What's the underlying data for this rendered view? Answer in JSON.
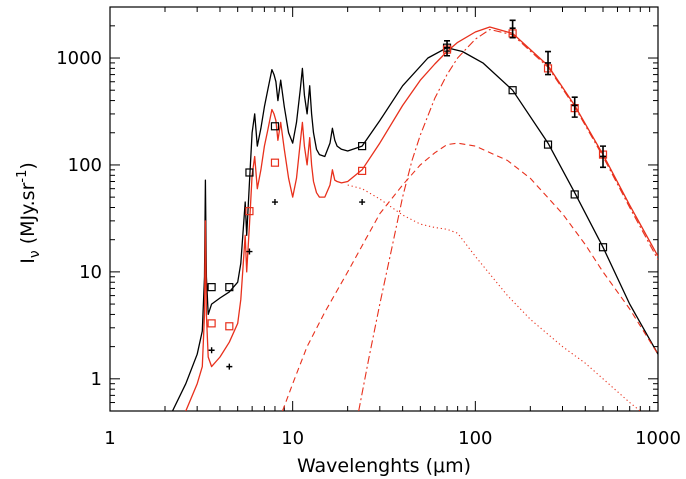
{
  "chart_data": {
    "type": "line",
    "xlabel": "Wavelenghts (μm)",
    "ylabel": "Iν (MJy.sr⁻¹)",
    "ylabel_parts": {
      "main": "I",
      "sub": "ν",
      "units": " (MJy.sr",
      "sup": "-1",
      "close": ")"
    },
    "xscale": "log",
    "yscale": "log",
    "xlim": [
      1,
      1000
    ],
    "ylim": [
      0.5,
      3000
    ],
    "x_ticks": [
      1,
      10,
      100,
      1000
    ],
    "x_tick_labels": [
      "1",
      "10",
      "100",
      "1000"
    ],
    "y_ticks": [
      1,
      10,
      100,
      1000
    ],
    "y_tick_labels": [
      "1",
      "10",
      "100",
      "1000"
    ],
    "grid": false,
    "legend": "none",
    "colors": {
      "black": "#000000",
      "red": "#e8301c"
    },
    "series": [
      {
        "color": "black",
        "style": "solid",
        "x": [
          2.2,
          2.6,
          3.0,
          3.2,
          3.29,
          3.33,
          3.37,
          3.45,
          3.6,
          4.0,
          4.5,
          5.0,
          5.2,
          5.5,
          5.6,
          5.8,
          6.0,
          6.2,
          6.4,
          6.7,
          7.0,
          7.3,
          7.7,
          7.9,
          8.1,
          8.3,
          8.6,
          9.0,
          9.5,
          10.0,
          10.5,
          11.0,
          11.3,
          11.6,
          12.0,
          12.4,
          12.7,
          13.0,
          13.5,
          14.0,
          15.0,
          16.0,
          16.5,
          17.0,
          17.5,
          18.5,
          20.0,
          24.0,
          30.0,
          40.0,
          55.0,
          70.0,
          85.0,
          110.0,
          160.0,
          250.0,
          350.0,
          500.0,
          700.0,
          1000.0
        ],
        "y": [
          0.5,
          0.9,
          1.7,
          2.8,
          9.0,
          72.0,
          9.0,
          4.0,
          5.0,
          5.7,
          6.5,
          8.0,
          12.0,
          45.0,
          22.0,
          70.0,
          200.0,
          300.0,
          150.0,
          220.0,
          350.0,
          500.0,
          780.0,
          700.0,
          600.0,
          400.0,
          620.0,
          350.0,
          200.0,
          160.0,
          250.0,
          500.0,
          800.0,
          450.0,
          300.0,
          550.0,
          300.0,
          200.0,
          140.0,
          125.0,
          120.0,
          160.0,
          220.0,
          170.0,
          150.0,
          140.0,
          135.0,
          150.0,
          260.0,
          550.0,
          1000.0,
          1250.0,
          1150.0,
          900.0,
          500.0,
          160.0,
          55.0,
          17.0,
          5.0,
          1.7
        ]
      },
      {
        "color": "red",
        "style": "solid",
        "x": [
          2.6,
          3.0,
          3.2,
          3.29,
          3.33,
          3.37,
          3.45,
          3.6,
          4.0,
          4.5,
          5.0,
          5.2,
          5.5,
          5.6,
          5.8,
          6.0,
          6.2,
          6.4,
          6.7,
          7.0,
          7.3,
          7.7,
          7.9,
          8.1,
          8.3,
          8.6,
          9.0,
          9.5,
          10.0,
          10.5,
          11.0,
          11.3,
          11.6,
          12.0,
          12.4,
          12.7,
          13.0,
          13.5,
          14.0,
          15.0,
          16.0,
          16.5,
          17.0,
          17.5,
          18.5,
          20.0,
          24.0,
          30.0,
          40.0,
          50.0,
          60.0,
          70.0,
          80.0,
          100.0,
          120.0,
          160.0,
          250.0,
          350.0,
          500.0,
          700.0,
          1000.0
        ],
        "y": [
          0.5,
          0.9,
          1.3,
          4.0,
          30.0,
          4.0,
          1.6,
          1.3,
          1.6,
          2.2,
          3.3,
          5.5,
          22.0,
          10.0,
          28.0,
          80.0,
          120.0,
          60.0,
          90.0,
          150.0,
          210.0,
          330.0,
          300.0,
          260.0,
          170.0,
          250.0,
          140.0,
          75.0,
          50.0,
          75.0,
          160.0,
          250.0,
          150.0,
          100.0,
          180.0,
          100.0,
          70.0,
          55.0,
          50.0,
          50.0,
          65.0,
          90.0,
          72.0,
          70.0,
          68.0,
          70.0,
          90.0,
          160.0,
          360.0,
          620.0,
          880.0,
          1150.0,
          1400.0,
          1750.0,
          1950.0,
          1700.0,
          850.0,
          360.0,
          125.0,
          42.0,
          14.0
        ]
      },
      {
        "color": "red",
        "style": "dashed",
        "x": [
          8.8,
          10.0,
          12.0,
          15.0,
          20.0,
          25.0,
          30.0,
          40.0,
          50.0,
          60.0,
          70.0,
          80.0,
          100.0,
          150.0,
          200.0,
          300.0,
          400.0,
          500.0,
          700.0,
          1000.0
        ],
        "y": [
          0.5,
          0.9,
          2.0,
          4.2,
          10.0,
          20.0,
          35.0,
          65.0,
          100.0,
          130.0,
          155.0,
          160.0,
          150.0,
          110.0,
          75.0,
          35.0,
          18.0,
          10.0,
          4.5,
          1.7
        ]
      },
      {
        "color": "red",
        "style": "dashdot",
        "x": [
          23.0,
          26.0,
          30.0,
          35.0,
          40.0,
          45.0,
          50.0,
          60.0,
          70.0,
          80.0,
          100.0,
          120.0,
          160.0,
          250.0,
          350.0,
          500.0,
          700.0,
          1000.0
        ],
        "y": [
          0.5,
          1.5,
          5.0,
          17.0,
          50.0,
          110.0,
          190.0,
          420.0,
          700.0,
          1000.0,
          1500.0,
          1850.0,
          1650.0,
          820.0,
          350.0,
          120.0,
          40.0,
          13.0
        ]
      },
      {
        "color": "red",
        "style": "dotted",
        "x": [
          20.0,
          24.0,
          30.0,
          40.0,
          50.0,
          60.0,
          70.0,
          80.0,
          100.0,
          150.0,
          200.0,
          300.0,
          400.0,
          500.0,
          700.0,
          800.0
        ],
        "y": [
          65.0,
          60.0,
          48.0,
          34.0,
          28.0,
          26.0,
          25.0,
          23.0,
          14.0,
          6.0,
          3.6,
          2.0,
          1.4,
          1.0,
          0.6,
          0.5
        ]
      }
    ],
    "points": [
      {
        "marker": "square",
        "color": "black",
        "x": [
          3.6,
          4.5,
          5.8,
          8.0,
          24.0,
          70.0,
          160.0,
          250.0,
          350.0,
          500.0
        ],
        "y": [
          7.2,
          7.2,
          85.0,
          230.0,
          150.0,
          1250.0,
          500.0,
          155.0,
          53.0,
          17.0
        ]
      },
      {
        "marker": "square",
        "color": "red",
        "x": [
          3.6,
          4.5,
          5.8,
          8.0,
          24.0,
          70.0,
          160.0,
          250.0,
          350.0,
          500.0
        ],
        "y": [
          3.3,
          3.1,
          37.0,
          105.0,
          88.0,
          1200.0,
          1700.0,
          800.0,
          340.0,
          125.0
        ]
      },
      {
        "marker": "plus",
        "color": "black",
        "x": [
          3.6,
          4.5,
          5.8,
          8.0,
          24.0
        ],
        "y": [
          1.85,
          1.3,
          15.5,
          45.0,
          45.0
        ]
      },
      {
        "marker": "errorbar",
        "color": "black",
        "x": [
          70.0,
          160.0,
          250.0,
          350.0,
          500.0
        ],
        "y": [
          1250.0,
          1900.0,
          900.0,
          360.0,
          120.0
        ],
        "err_lo": [
          1050.0,
          1550.0,
          700.0,
          280.0,
          95.0
        ],
        "err_hi": [
          1450.0,
          2250.0,
          1150.0,
          430.0,
          150.0
        ]
      }
    ]
  }
}
